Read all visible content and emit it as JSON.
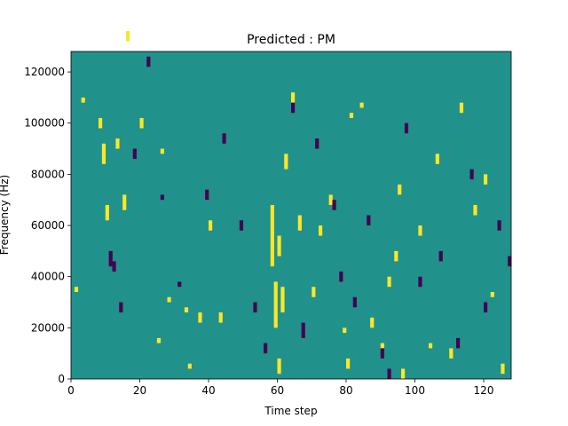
{
  "chart_data": {
    "type": "heatmap",
    "title": "Predicted : PM",
    "xlabel": "Time step",
    "ylabel": "Frequency (Hz)",
    "xlim": [
      0,
      128
    ],
    "ylim": [
      0,
      128000
    ],
    "x_ticks": [
      0,
      20,
      40,
      60,
      80,
      100,
      120
    ],
    "y_ticks": [
      0,
      20000,
      40000,
      60000,
      80000,
      100000,
      120000
    ],
    "x_tick_labels": [
      "0",
      "20",
      "40",
      "60",
      "80",
      "100",
      "120"
    ],
    "y_tick_labels": [
      "0",
      "20000",
      "40000",
      "60000",
      "80000",
      "100000",
      "120000"
    ],
    "colormap": {
      "low": "#440154",
      "mid": "#21918c",
      "high": "#fde725"
    },
    "background_value": 0.5,
    "freq_bin_hz": 2000,
    "cells": [
      [
        1,
        17,
        17,
        1
      ],
      [
        3,
        54,
        54,
        1
      ],
      [
        8,
        49,
        50,
        1
      ],
      [
        9,
        42,
        45,
        1
      ],
      [
        10,
        31,
        33,
        1
      ],
      [
        13,
        45,
        46,
        1
      ],
      [
        15,
        33,
        35,
        1
      ],
      [
        16,
        66,
        67,
        1
      ],
      [
        20,
        49,
        50,
        1
      ],
      [
        25,
        7,
        7,
        1
      ],
      [
        26,
        44,
        44,
        1
      ],
      [
        28,
        15,
        15,
        1
      ],
      [
        33,
        13,
        13,
        1
      ],
      [
        34,
        2,
        2,
        1
      ],
      [
        37,
        11,
        12,
        1
      ],
      [
        40,
        29,
        30,
        1
      ],
      [
        43,
        11,
        12,
        1
      ],
      [
        58,
        22,
        33,
        1
      ],
      [
        59,
        10,
        18,
        1
      ],
      [
        60,
        24,
        27,
        1
      ],
      [
        60,
        1,
        3,
        1
      ],
      [
        61,
        13,
        17,
        1
      ],
      [
        62,
        41,
        43,
        1
      ],
      [
        64,
        54,
        55,
        1
      ],
      [
        66,
        29,
        31,
        1
      ],
      [
        70,
        16,
        17,
        1
      ],
      [
        72,
        28,
        29,
        1
      ],
      [
        75,
        34,
        35,
        1
      ],
      [
        79,
        9,
        9,
        1
      ],
      [
        80,
        2,
        3,
        1
      ],
      [
        81,
        51,
        51,
        1
      ],
      [
        84,
        53,
        53,
        1
      ],
      [
        87,
        10,
        11,
        1
      ],
      [
        90,
        6,
        6,
        1
      ],
      [
        92,
        18,
        19,
        1
      ],
      [
        94,
        23,
        24,
        1
      ],
      [
        95,
        36,
        37,
        1
      ],
      [
        96,
        0,
        1,
        1
      ],
      [
        101,
        28,
        29,
        1
      ],
      [
        104,
        6,
        6,
        1
      ],
      [
        106,
        42,
        43,
        1
      ],
      [
        110,
        4,
        5,
        1
      ],
      [
        113,
        52,
        53,
        1
      ],
      [
        117,
        32,
        33,
        1
      ],
      [
        120,
        38,
        39,
        1
      ],
      [
        122,
        16,
        16,
        1
      ],
      [
        125,
        1,
        2,
        1
      ],
      [
        11,
        22,
        24,
        0
      ],
      [
        12,
        21,
        22,
        0
      ],
      [
        14,
        13,
        14,
        0
      ],
      [
        18,
        43,
        44,
        0
      ],
      [
        22,
        61,
        62,
        0
      ],
      [
        26,
        35,
        35,
        0
      ],
      [
        31,
        18,
        18,
        0
      ],
      [
        39,
        35,
        36,
        0
      ],
      [
        44,
        46,
        47,
        0
      ],
      [
        49,
        29,
        30,
        0
      ],
      [
        53,
        13,
        14,
        0
      ],
      [
        56,
        5,
        6,
        0
      ],
      [
        64,
        52,
        53,
        0
      ],
      [
        67,
        8,
        10,
        0
      ],
      [
        71,
        45,
        46,
        0
      ],
      [
        76,
        33,
        34,
        0
      ],
      [
        78,
        19,
        20,
        0
      ],
      [
        82,
        14,
        15,
        0
      ],
      [
        86,
        30,
        31,
        0
      ],
      [
        90,
        4,
        5,
        0
      ],
      [
        92,
        0,
        1,
        0
      ],
      [
        97,
        48,
        49,
        0
      ],
      [
        101,
        18,
        19,
        0
      ],
      [
        107,
        23,
        24,
        0
      ],
      [
        112,
        6,
        7,
        0
      ],
      [
        116,
        39,
        40,
        0
      ],
      [
        120,
        13,
        14,
        0
      ],
      [
        124,
        29,
        30,
        0
      ],
      [
        127,
        22,
        23,
        0
      ]
    ]
  }
}
